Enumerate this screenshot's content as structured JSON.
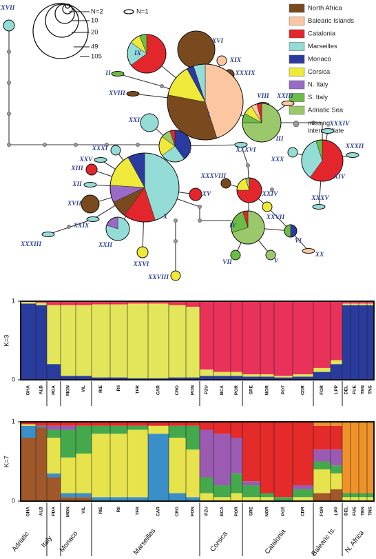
{
  "network": {
    "size_legend": [
      "N=2",
      "10",
      "20",
      "49",
      "105"
    ],
    "single_label": "N=1",
    "legend": [
      {
        "label": "North Africa",
        "color": "#7a4a1f"
      },
      {
        "label": "Balearic Islands",
        "color": "#fcc7a0"
      },
      {
        "label": "Catalonia",
        "color": "#e3262b"
      },
      {
        "label": "Marseilles",
        "color": "#94dcd6"
      },
      {
        "label": "Monaco",
        "color": "#2b3a9f"
      },
      {
        "label": "Corsica",
        "color": "#efe93a"
      },
      {
        "label": "N. Italy",
        "color": "#9a6bc6"
      },
      {
        "label": "S. Italy",
        "color": "#6cbd45"
      },
      {
        "label": "Adriatic Sea",
        "color": "#9cc86c"
      }
    ],
    "missing_label": [
      "missing",
      "intermediate"
    ],
    "nodes": [
      {
        "label": "XXXVII",
        "color": "#94dcd6"
      },
      {
        "label": "XVI",
        "color": "#7a4a1f"
      },
      {
        "label": "IX",
        "slices": [
          {
            "color": "#e3262b",
            "value": 65
          },
          {
            "color": "#94dcd6",
            "value": 20
          },
          {
            "color": "#efe93a",
            "value": 9
          },
          {
            "color": "#6cbd45",
            "value": 6
          }
        ]
      },
      {
        "label": "XIX",
        "color": "#fcc7a0"
      },
      {
        "label": "XXXIX",
        "color": "#7a4a1f"
      },
      {
        "label": "II",
        "color": "#6cbd45"
      },
      {
        "label": "XVIII",
        "color": "#7a4a1f"
      },
      {
        "label": "I",
        "slices": [
          {
            "color": "#fcc7a0",
            "value": 45
          },
          {
            "color": "#7a4a1f",
            "value": 33
          },
          {
            "color": "#efe93a",
            "value": 14
          },
          {
            "color": "#2b3a9f",
            "value": 3
          },
          {
            "color": "#94dcd6",
            "value": 5
          }
        ]
      },
      {
        "label": "VIII",
        "color": "#9cc86c"
      },
      {
        "label": "XXIII",
        "color": "#fcc7a0"
      },
      {
        "label": "III",
        "slices": [
          {
            "color": "#9cc86c",
            "value": 75
          },
          {
            "color": "#6cbd45",
            "value": 8
          },
          {
            "color": "#efe93a",
            "value": 8
          },
          {
            "color": "#fcc7a0",
            "value": 5
          },
          {
            "color": "#e3262b",
            "value": 4
          }
        ]
      },
      {
        "label": "XXI",
        "color": "#94dcd6"
      },
      {
        "label": "XI",
        "slices": [
          {
            "color": "#2b3a9f",
            "value": 40
          },
          {
            "color": "#94dcd6",
            "value": 25
          },
          {
            "color": "#efe93a",
            "value": 20
          },
          {
            "color": "#9cc86c",
            "value": 10
          },
          {
            "color": "#e3262b",
            "value": 5
          }
        ]
      },
      {
        "label": "XXXI",
        "color": "#94dcd6"
      },
      {
        "label": "XXV",
        "color": "#94dcd6"
      },
      {
        "label": "XIII",
        "color": "#e3262b"
      },
      {
        "label": "XII",
        "color": "#94dcd6"
      },
      {
        "label": "X",
        "slices": [
          {
            "color": "#94dcd6",
            "value": 45
          },
          {
            "color": "#e3262b",
            "value": 15
          },
          {
            "color": "#7a4a1f",
            "value": 8
          },
          {
            "color": "#9a6bc6",
            "value": 8
          },
          {
            "color": "#efe93a",
            "value": 16
          },
          {
            "color": "#2b3a9f",
            "value": 8
          }
        ]
      },
      {
        "label": "XVII",
        "color": "#7a4a1f"
      },
      {
        "label": "XXII",
        "slices": [
          {
            "color": "#94dcd6",
            "value": 80
          },
          {
            "color": "#9a6bc6",
            "value": 20
          }
        ]
      },
      {
        "label": "XXIX",
        "color": "#94dcd6"
      },
      {
        "label": "XXXIII",
        "color": "#94dcd6"
      },
      {
        "label": "XV",
        "color": "#e3262b"
      },
      {
        "label": "XXXVIII",
        "color": "#7a4a1f"
      },
      {
        "label": "XXXVI",
        "color": "#94dcd6"
      },
      {
        "label": "XXIV",
        "slices": [
          {
            "color": "#e3262b",
            "value": 75
          },
          {
            "color": "#efe93a",
            "value": 20
          },
          {
            "color": "#9cc86c",
            "value": 5
          }
        ]
      },
      {
        "label": "XXVII",
        "color": "#efe93a"
      },
      {
        "label": "IV",
        "slices": [
          {
            "color": "#9cc86c",
            "value": 70
          },
          {
            "color": "#6cbd45",
            "value": 25
          },
          {
            "color": "#e3262b",
            "value": 5
          }
        ]
      },
      {
        "label": "VI",
        "slices": [
          {
            "color": "#2b3a9f",
            "value": 50
          },
          {
            "color": "#6cbd45",
            "value": 50
          }
        ]
      },
      {
        "label": "VII",
        "color": "#6cbd45"
      },
      {
        "label": "V",
        "color": "#9cc86c"
      },
      {
        "label": "XX",
        "color": "#fcc7a0"
      },
      {
        "label": "XXVI",
        "color": "#efe93a"
      },
      {
        "label": "XXVIII",
        "color": "#efe93a"
      },
      {
        "label": "XIV",
        "slices": [
          {
            "color": "#e3262b",
            "value": 60
          },
          {
            "color": "#94dcd6",
            "value": 35
          },
          {
            "color": "#6cbd45",
            "value": 5
          }
        ]
      },
      {
        "label": "XXX",
        "color": "#94dcd6"
      },
      {
        "label": "XXXIV",
        "color": "#94dcd6"
      },
      {
        "label": "XXXII",
        "color": "#94dcd6"
      },
      {
        "label": "XXXV",
        "color": "#94dcd6"
      }
    ]
  },
  "structure": {
    "populations": [
      "GHA",
      "ALB",
      "PDA",
      "MON",
      "VIL",
      "RIE",
      "RII",
      "TFR",
      "CAR",
      "CRO",
      "PON",
      "PZU",
      "BCA",
      "POR",
      "SRE",
      "NOR",
      "POT",
      "CDR",
      "FOR",
      "LPP",
      "DEL",
      "FUE",
      "TEN",
      "TNS"
    ],
    "regions": [
      "Adriatic",
      "Italy",
      "Monaco",
      "Marseilles",
      "Corsica",
      "Catalonia",
      "Balearic Is.",
      "N. Africa"
    ],
    "panels": [
      {
        "label": "K=3",
        "yticks": [
          0,
          1
        ],
        "colors": [
          "#2a3b9e",
          "#e3e55a",
          "#e8325a"
        ],
        "values": [
          [
            0.97,
            0.02,
            0.01
          ],
          [
            0.95,
            0.03,
            0.02
          ],
          [
            0.2,
            0.75,
            0.05
          ],
          [
            0.05,
            0.9,
            0.05
          ],
          [
            0.05,
            0.9,
            0.05
          ],
          [
            0.03,
            0.93,
            0.04
          ],
          [
            0.03,
            0.93,
            0.04
          ],
          [
            0.02,
            0.95,
            0.03
          ],
          [
            0.02,
            0.95,
            0.03
          ],
          [
            0.03,
            0.92,
            0.05
          ],
          [
            0.03,
            0.9,
            0.07
          ],
          [
            0.05,
            0.08,
            0.87
          ],
          [
            0.05,
            0.05,
            0.9
          ],
          [
            0.05,
            0.05,
            0.9
          ],
          [
            0.04,
            0.03,
            0.93
          ],
          [
            0.04,
            0.03,
            0.93
          ],
          [
            0.03,
            0.02,
            0.95
          ],
          [
            0.04,
            0.03,
            0.93
          ],
          [
            0.1,
            0.05,
            0.85
          ],
          [
            0.2,
            0.05,
            0.75
          ],
          [
            0.95,
            0.02,
            0.03
          ],
          [
            0.95,
            0.02,
            0.03
          ],
          [
            0.95,
            0.02,
            0.03
          ],
          [
            0.95,
            0.02,
            0.03
          ]
        ]
      },
      {
        "label": "K=7",
        "yticks": [
          0,
          1
        ],
        "colors": [
          "#a0582a",
          "#3a8fc9",
          "#e6e34d",
          "#44a84d",
          "#9b5bb3",
          "#e52a2a",
          "#f0922a"
        ],
        "values": [
          [
            0.8,
            0.15,
            0.02,
            0,
            0,
            0.03,
            0
          ],
          [
            0.93,
            0.02,
            0,
            0,
            0,
            0.05,
            0
          ],
          [
            0.3,
            0.05,
            0.45,
            0.1,
            0.05,
            0.05,
            0
          ],
          [
            0.05,
            0.05,
            0.45,
            0.35,
            0.05,
            0.05,
            0
          ],
          [
            0.05,
            0.05,
            0.5,
            0.35,
            0,
            0.05,
            0
          ],
          [
            0,
            0.05,
            0.8,
            0.1,
            0,
            0.05,
            0
          ],
          [
            0,
            0.05,
            0.8,
            0.1,
            0,
            0.05,
            0
          ],
          [
            0,
            0.05,
            0.85,
            0.05,
            0,
            0.05,
            0
          ],
          [
            0,
            0.85,
            0.1,
            0,
            0,
            0.05,
            0
          ],
          [
            0,
            0.1,
            0.7,
            0.15,
            0,
            0.05,
            0
          ],
          [
            0,
            0.05,
            0.6,
            0.3,
            0,
            0.05,
            0
          ],
          [
            0,
            0,
            0.1,
            0.2,
            0.6,
            0.1,
            0
          ],
          [
            0,
            0,
            0.05,
            0.15,
            0.65,
            0.15,
            0
          ],
          [
            0,
            0,
            0.1,
            0.25,
            0.45,
            0.2,
            0
          ],
          [
            0,
            0,
            0.05,
            0.15,
            0.05,
            0.75,
            0
          ],
          [
            0,
            0,
            0.05,
            0.05,
            0,
            0.9,
            0
          ],
          [
            0,
            0,
            0,
            0.05,
            0,
            0.95,
            0
          ],
          [
            0,
            0,
            0.05,
            0.1,
            0.05,
            0.8,
            0
          ],
          [
            0.1,
            0,
            0.3,
            0.1,
            0.15,
            0.3,
            0.05
          ],
          [
            0.15,
            0,
            0.2,
            0.1,
            0.2,
            0.3,
            0.05
          ],
          [
            0,
            0,
            0.05,
            0.05,
            0,
            0,
            0.9
          ],
          [
            0,
            0,
            0.05,
            0.05,
            0,
            0,
            0.9
          ],
          [
            0,
            0,
            0.05,
            0.05,
            0,
            0,
            0.9
          ],
          [
            0,
            0,
            0.05,
            0.05,
            0,
            0,
            0.9
          ]
        ]
      }
    ]
  }
}
